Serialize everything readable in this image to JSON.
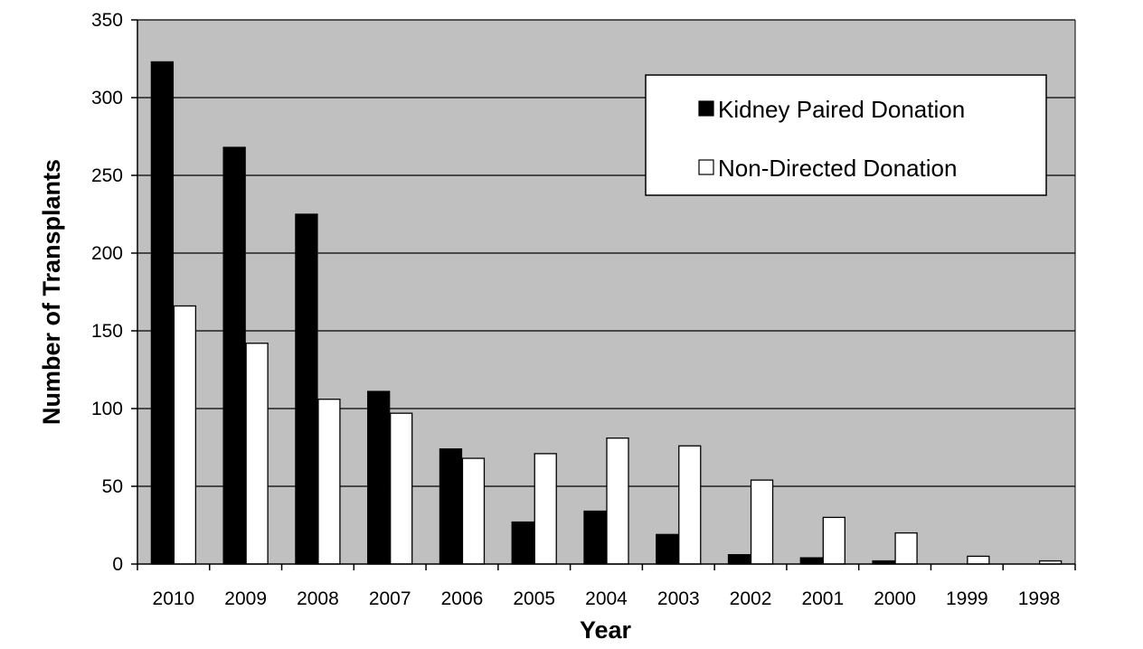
{
  "chart_data": {
    "type": "bar",
    "title": "",
    "xlabel": "Year",
    "ylabel": "Number of Transplants",
    "ylim": [
      0,
      350
    ],
    "yticks": [
      0,
      50,
      100,
      150,
      200,
      250,
      300,
      350
    ],
    "grid": true,
    "legend_position": "top-right",
    "plot_background": "#c0c0c0",
    "categories": [
      "2010",
      "2009",
      "2008",
      "2007",
      "2006",
      "2005",
      "2004",
      "2003",
      "2002",
      "2001",
      "2000",
      "1999",
      "1998"
    ],
    "series": [
      {
        "name": "Kidney Paired Donation",
        "color": "#000000",
        "values": [
          323,
          268,
          225,
          111,
          74,
          27,
          34,
          19,
          6,
          4,
          2,
          0,
          0
        ]
      },
      {
        "name": "Non-Directed Donation",
        "color": "#ffffff",
        "values": [
          166,
          142,
          106,
          97,
          68,
          71,
          81,
          76,
          54,
          30,
          20,
          5,
          2
        ]
      }
    ]
  }
}
